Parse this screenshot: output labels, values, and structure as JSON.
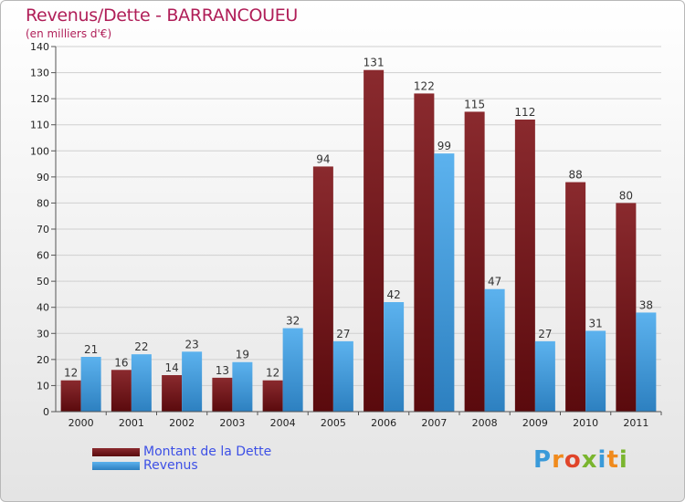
{
  "title": "Revenus/Dette - BARRANCOUEU",
  "subtitle": "(en milliers d'€)",
  "legend": {
    "debt_label": "Montant de la Dette",
    "revenue_label": "Revenus"
  },
  "logo": {
    "text": "Proxiti",
    "letters": [
      "P",
      "r",
      "o",
      "x",
      "i",
      "t",
      "i"
    ],
    "letter_colors": [
      "#3a9ad9",
      "#f08a1c",
      "#e0452a",
      "#7ab52e",
      "#3a9ad9",
      "#f08a1c",
      "#7ab52e"
    ]
  },
  "colors": {
    "debt": "#7d1f23",
    "debt_dark": "#560a0d",
    "revenue": "#54aae8",
    "revenue_dark": "#2f83c4",
    "grid": "#cfcfcf",
    "title": "#b01e58"
  },
  "chart_data": {
    "type": "bar",
    "title": "Revenus/Dette - BARRANCOUEU",
    "subtitle": "(en milliers d'€)",
    "xlabel": "",
    "ylabel": "",
    "ylim": [
      0,
      140
    ],
    "yticks": [
      0,
      10,
      20,
      30,
      40,
      50,
      60,
      70,
      80,
      90,
      100,
      110,
      120,
      130,
      140
    ],
    "categories": [
      "2000",
      "2001",
      "2002",
      "2003",
      "2004",
      "2005",
      "2006",
      "2007",
      "2008",
      "2009",
      "2010",
      "2011"
    ],
    "series": [
      {
        "name": "Montant de la Dette",
        "values": [
          12,
          16,
          14,
          13,
          12,
          94,
          131,
          122,
          115,
          112,
          88,
          80
        ]
      },
      {
        "name": "Revenus",
        "values": [
          21,
          22,
          23,
          19,
          32,
          27,
          42,
          99,
          47,
          27,
          31,
          38
        ]
      }
    ],
    "grid": true,
    "legend_position": "bottom-left"
  }
}
